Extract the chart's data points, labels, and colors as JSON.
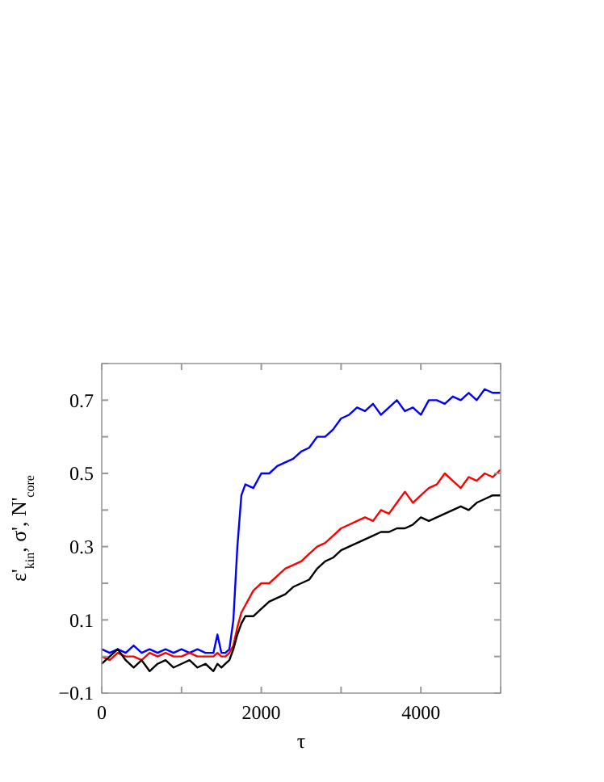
{
  "chart_data": {
    "type": "line",
    "xlabel": "τ",
    "ylabel": "ε'$_{kin}$, σ', N'$_{core}$",
    "xlim": [
      0,
      5000
    ],
    "ylim": [
      -0.1,
      0.8
    ],
    "xticks": [
      0,
      {
        "value": 1000,
        "label": null
      },
      2000,
      {
        "value": 3000,
        "label": null
      },
      4000,
      {
        "value": 5000,
        "label": null
      }
    ],
    "yticks": [
      -0.1,
      {
        "value": 0,
        "label": null
      },
      0.1,
      {
        "value": 0.2,
        "label": null
      },
      0.3,
      {
        "value": 0.4,
        "label": null
      },
      0.5,
      {
        "value": 0.6,
        "label": null
      },
      0.7,
      {
        "value": 0.8,
        "label": null
      }
    ],
    "grid": false,
    "marker": "none",
    "line_style": "solid",
    "x": [
      0,
      100,
      200,
      300,
      400,
      500,
      600,
      700,
      800,
      900,
      1000,
      1100,
      1200,
      1300,
      1400,
      1450,
      1500,
      1550,
      1600,
      1650,
      1700,
      1750,
      1800,
      1900,
      2000,
      2100,
      2200,
      2300,
      2400,
      2500,
      2600,
      2700,
      2800,
      2900,
      3000,
      3100,
      3200,
      3300,
      3400,
      3500,
      3600,
      3700,
      3800,
      3900,
      4000,
      4100,
      4200,
      4300,
      4400,
      4500,
      4600,
      4700,
      4800,
      4900,
      5000
    ],
    "series": [
      {
        "color": "#0000ff",
        "values": [
          0.02,
          0.01,
          0.02,
          0.01,
          0.03,
          0.01,
          0.02,
          0.01,
          0.02,
          0.01,
          0.02,
          0.01,
          0.02,
          0.01,
          0.01,
          0.06,
          0.01,
          0.01,
          0.02,
          0.1,
          0.3,
          0.44,
          0.47,
          0.46,
          0.5,
          0.5,
          0.52,
          0.53,
          0.54,
          0.56,
          0.57,
          0.6,
          0.6,
          0.62,
          0.65,
          0.66,
          0.68,
          0.67,
          0.69,
          0.66,
          0.68,
          0.7,
          0.67,
          0.68,
          0.66,
          0.7,
          0.7,
          0.69,
          0.71,
          0.7,
          0.72,
          0.7,
          0.73,
          0.72,
          0.72
        ]
      },
      {
        "color": "#ff0000",
        "values": [
          0,
          -0.01,
          0.01,
          0,
          0,
          -0.01,
          0.01,
          0,
          0.01,
          0,
          0,
          0.01,
          0,
          0,
          0,
          0.01,
          0,
          0,
          0.01,
          0.03,
          0.08,
          0.12,
          0.14,
          0.18,
          0.2,
          0.2,
          0.22,
          0.24,
          0.25,
          0.26,
          0.28,
          0.3,
          0.31,
          0.33,
          0.35,
          0.36,
          0.37,
          0.38,
          0.37,
          0.4,
          0.39,
          0.42,
          0.45,
          0.42,
          0.44,
          0.46,
          0.47,
          0.5,
          0.48,
          0.46,
          0.49,
          0.48,
          0.5,
          0.49,
          0.51
        ]
      },
      {
        "color": "#000000",
        "values": [
          -0.02,
          0,
          0.02,
          -0.01,
          -0.03,
          -0.01,
          -0.04,
          -0.02,
          -0.01,
          -0.03,
          -0.02,
          -0.01,
          -0.03,
          -0.02,
          -0.04,
          -0.02,
          -0.03,
          -0.02,
          -0.01,
          0.02,
          0.06,
          0.09,
          0.11,
          0.11,
          0.13,
          0.15,
          0.16,
          0.17,
          0.19,
          0.2,
          0.21,
          0.24,
          0.26,
          0.27,
          0.29,
          0.3,
          0.31,
          0.32,
          0.33,
          0.34,
          0.34,
          0.35,
          0.35,
          0.36,
          0.38,
          0.37,
          0.38,
          0.39,
          0.4,
          0.41,
          0.4,
          0.42,
          0.43,
          0.44,
          0.44
        ]
      }
    ]
  }
}
